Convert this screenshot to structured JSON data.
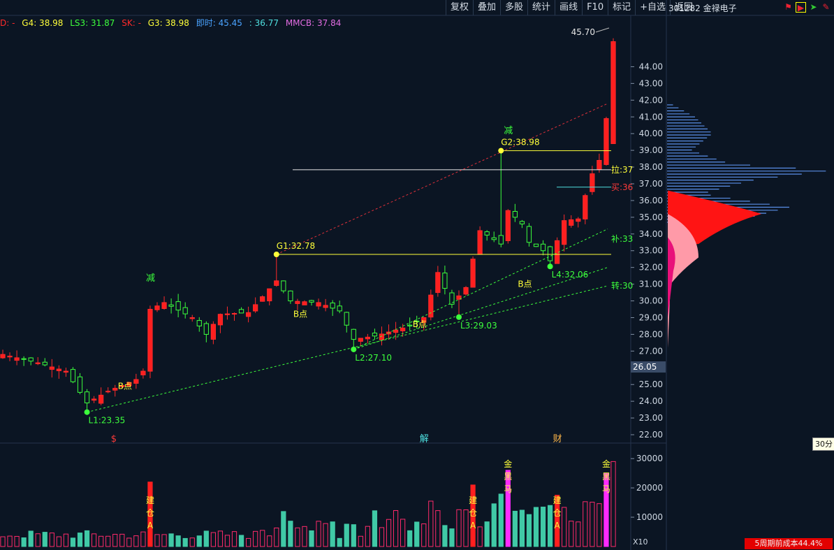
{
  "toolbar": {
    "items": [
      "复权",
      "叠加",
      "多股",
      "统计",
      "画线",
      "F10",
      "标记",
      "+自选",
      "返回"
    ]
  },
  "stock": {
    "code_name": "301282 金禄电子"
  },
  "indicators": [
    {
      "text": "D: -",
      "color": "#ff2a2a"
    },
    {
      "text": "G4: 38.98",
      "color": "#ffff3a"
    },
    {
      "text": "LS3: 31.87",
      "color": "#3cff3c"
    },
    {
      "text": "SK: -",
      "color": "#ff2a2a"
    },
    {
      "text": "G3: 38.98",
      "color": "#ffff3a"
    },
    {
      "text": "即时: 45.45",
      "color": "#4aa3ff"
    },
    {
      "text": ": 36.77",
      "color": "#4fe0e0"
    },
    {
      "text": "MMCB: 37.84",
      "color": "#e26ce2"
    }
  ],
  "labels": {
    "current_price": "26.05",
    "volume_unit": "X10",
    "tooltip": "30分",
    "max_price": "45.70",
    "bottom_badge": "5周期前成本44.4%"
  },
  "chart_data": {
    "type": "candlestick",
    "ylim": [
      21.5,
      46.4
    ],
    "y_ticks": [
      22,
      23,
      24,
      25,
      26,
      27,
      28,
      29,
      30,
      31,
      32,
      33,
      34,
      35,
      36,
      37,
      38,
      39,
      40,
      41,
      42,
      43,
      44
    ],
    "volume_ticks": [
      10000,
      20000,
      30000
    ],
    "volume_ylim": [
      0,
      31000
    ],
    "x_count": 88,
    "annotations": [
      {
        "text": "L1:23.35",
        "price": 23.35,
        "idx": 12,
        "color": "#3cff3c",
        "type": "low"
      },
      {
        "text": "L2:27.10",
        "price": 27.1,
        "idx": 50,
        "color": "#3cff3c",
        "type": "low"
      },
      {
        "text": "L3:29.03",
        "price": 29.03,
        "idx": 65,
        "color": "#3cff3c",
        "type": "low"
      },
      {
        "text": "L4:32.06",
        "price": 32.06,
        "idx": 78,
        "color": "#3cff3c",
        "type": "low"
      },
      {
        "text": "G1:32.78",
        "price": 32.78,
        "idx": 39,
        "color": "#ffff3a",
        "type": "high"
      },
      {
        "text": "G2:38.98",
        "price": 38.98,
        "idx": 71,
        "color": "#ffff3a",
        "type": "high"
      }
    ],
    "b_points": [
      {
        "text": "B点",
        "idx": 17,
        "price": 24.9
      },
      {
        "text": "B点",
        "idx": 42,
        "price": 29.2
      },
      {
        "text": "B点",
        "idx": 59,
        "price": 28.6
      },
      {
        "text": "B点",
        "idx": 74,
        "price": 31.0
      }
    ],
    "side_labels": [
      {
        "text": "拉:37",
        "price": 37.84,
        "color": "#ffff3a"
      },
      {
        "text": "买:36",
        "price": 36.8,
        "color": "#ff3a3a"
      },
      {
        "text": "补:33",
        "price": 33.7,
        "color": "#3cff3c"
      },
      {
        "text": "转:30",
        "price": 30.9,
        "color": "#3cff3c"
      }
    ],
    "jian_labels": [
      {
        "text": "减",
        "idx": 21,
        "price": 31.2
      },
      {
        "text": "减",
        "idx": 72,
        "price": 40.0
      }
    ],
    "event_marks": [
      {
        "text": "$",
        "idx": 16,
        "color": "#ff3a3a"
      },
      {
        "text": "解",
        "idx": 60,
        "color": "#4fe0e0"
      },
      {
        "text": "财",
        "idx": 79,
        "color": "#ffb74a"
      }
    ],
    "vol_markers": [
      {
        "idx": 21,
        "text": "建仓A"
      },
      {
        "idx": 67,
        "text": "建仓A"
      },
      {
        "idx": 79,
        "text": "建仓A"
      },
      {
        "idx": 72,
        "text": "金黑马"
      },
      {
        "idx": 86,
        "text": "金黑马"
      }
    ]
  }
}
